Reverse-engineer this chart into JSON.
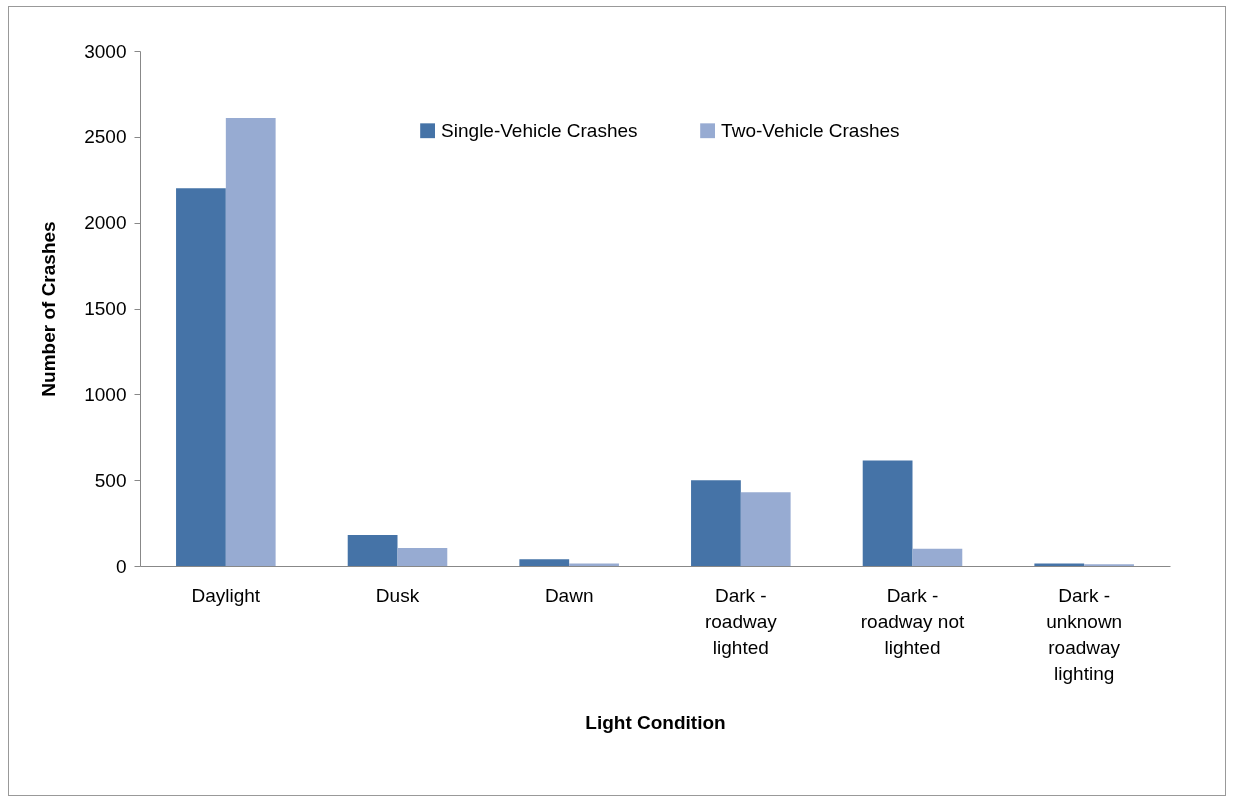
{
  "chart_data": {
    "type": "bar",
    "xlabel": "Light Condition",
    "ylabel": "Number of Crashes",
    "categories": [
      "Daylight",
      "Dusk",
      "Dawn",
      "Dark - roadway lighted",
      "Dark - roadway not lighted",
      "Dark - unknown roadway lighting"
    ],
    "series": [
      {
        "name": "Single-Vehicle Crashes",
        "color": "#4573a7",
        "values": [
          2200,
          180,
          40,
          500,
          615,
          15
        ]
      },
      {
        "name": "Two-Vehicle Crashes",
        "color": "#97abd2",
        "values": [
          2610,
          105,
          15,
          430,
          100,
          10
        ]
      }
    ],
    "ylim": [
      0,
      3000
    ],
    "yticks": [
      0,
      500,
      1000,
      1500,
      2000,
      2500,
      3000
    ],
    "grid": false,
    "legend": "top"
  }
}
